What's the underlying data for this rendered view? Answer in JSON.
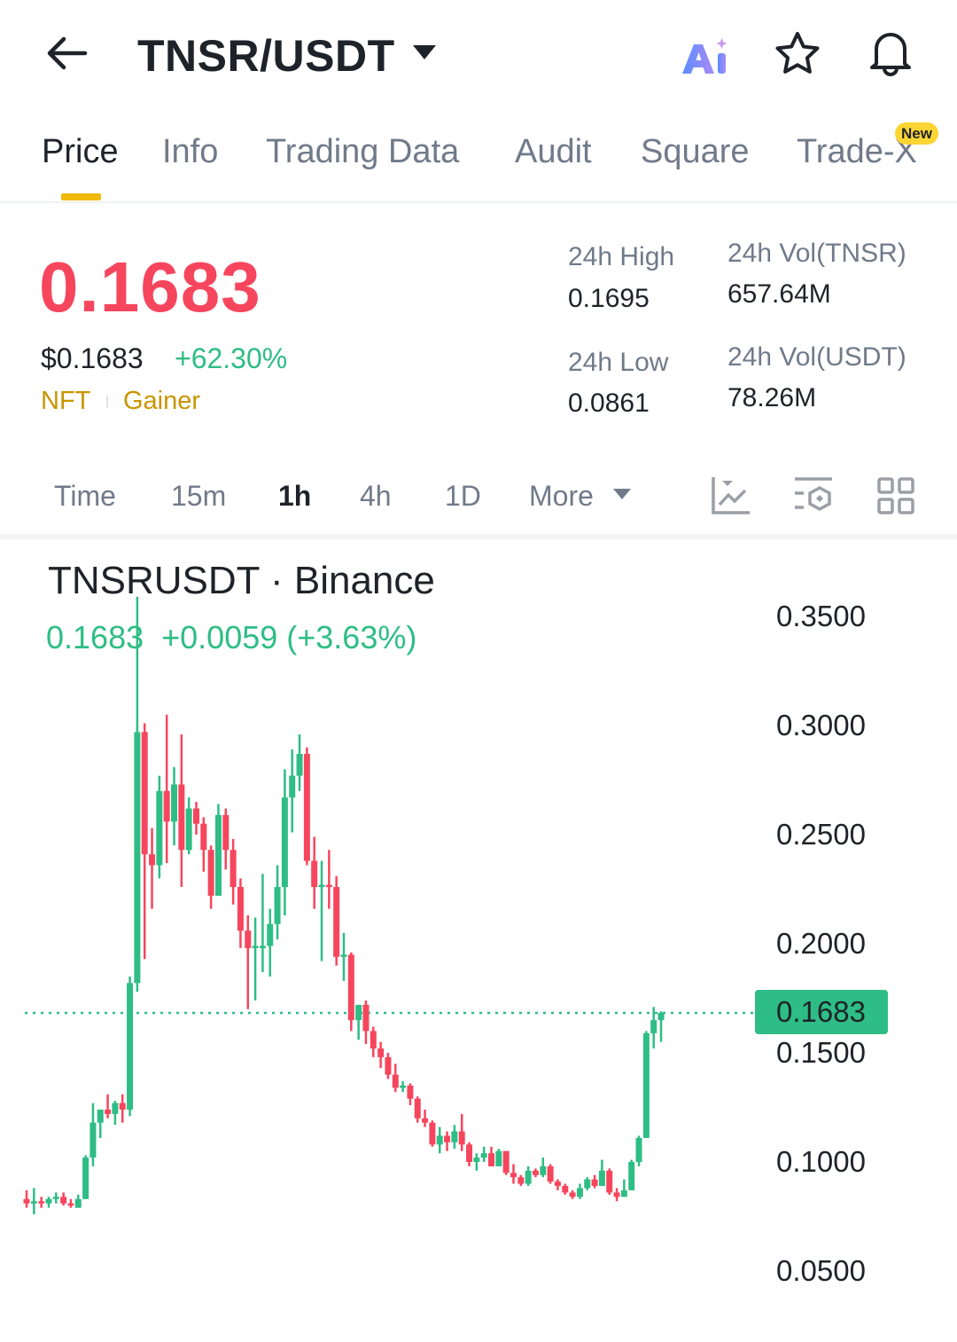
{
  "header": {
    "back_icon": "arrow-left-icon",
    "title": "TNSR/USDT",
    "dropdown_icon": "caret-down-icon",
    "icons": [
      "ai-icon",
      "star-icon",
      "bell-icon"
    ]
  },
  "tabs": [
    {
      "label": "Price",
      "active": true
    },
    {
      "label": "Info"
    },
    {
      "label": "Trading Data"
    },
    {
      "label": "Audit"
    },
    {
      "label": "Square"
    },
    {
      "label": "Trade-X",
      "badge": "New"
    }
  ],
  "summary": {
    "last_price": "0.1683",
    "usd_price": "$0.1683",
    "change_pct": "+62.30%",
    "tags": [
      "NFT",
      "Gainer"
    ],
    "stats": [
      {
        "label": "24h High",
        "value": "0.1695"
      },
      {
        "label": "24h Vol(TNSR)",
        "value": "657.64M"
      },
      {
        "label": "24h Low",
        "value": "0.0861"
      },
      {
        "label": "24h Vol(USDT)",
        "value": "78.26M"
      }
    ]
  },
  "timeframes": [
    {
      "label": "Time"
    },
    {
      "label": "15m"
    },
    {
      "label": "1h",
      "active": true
    },
    {
      "label": "4h"
    },
    {
      "label": "1D"
    },
    {
      "label": "More"
    }
  ],
  "toolbar_icons": [
    "indicator-chart-icon",
    "settings-hex-icon",
    "grid-layout-icon"
  ],
  "colors": {
    "up": "#2EBD85",
    "down": "#F6465D",
    "accent": "#F0B90B",
    "tag": "#C99400"
  },
  "chart": {
    "title": "TNSRUSDT · Binance",
    "quote_price": "0.1683",
    "quote_change": "+0.0059 (+3.63%)",
    "current_label": "0.1683"
  },
  "chart_data": {
    "type": "candlestick",
    "interval": "1h",
    "ylim": [
      0.035,
      0.36
    ],
    "y_ticks": [
      "0.3500",
      "0.3000",
      "0.2500",
      "0.2000",
      "0.1500",
      "0.1000",
      "0.0500"
    ],
    "y_tick_values": [
      0.35,
      0.3,
      0.25,
      0.2,
      0.15,
      0.1,
      0.05
    ],
    "current_price": 0.1683,
    "ohlc": [
      [
        0.083,
        0.087,
        0.079,
        0.081
      ],
      [
        0.081,
        0.088,
        0.076,
        0.082
      ],
      [
        0.082,
        0.084,
        0.079,
        0.081
      ],
      [
        0.081,
        0.084,
        0.079,
        0.083
      ],
      [
        0.083,
        0.086,
        0.081,
        0.084
      ],
      [
        0.084,
        0.086,
        0.08,
        0.081
      ],
      [
        0.081,
        0.083,
        0.079,
        0.08
      ],
      [
        0.079,
        0.085,
        0.079,
        0.083
      ],
      [
        0.083,
        0.103,
        0.083,
        0.102
      ],
      [
        0.102,
        0.127,
        0.098,
        0.118
      ],
      [
        0.118,
        0.123,
        0.111,
        0.124
      ],
      [
        0.124,
        0.131,
        0.12,
        0.122
      ],
      [
        0.122,
        0.128,
        0.117,
        0.127
      ],
      [
        0.127,
        0.131,
        0.118,
        0.124
      ],
      [
        0.124,
        0.185,
        0.121,
        0.182
      ],
      [
        0.182,
        0.359,
        0.178,
        0.297
      ],
      [
        0.297,
        0.301,
        0.193,
        0.241
      ],
      [
        0.241,
        0.253,
        0.216,
        0.236
      ],
      [
        0.236,
        0.277,
        0.23,
        0.27
      ],
      [
        0.27,
        0.305,
        0.237,
        0.256
      ],
      [
        0.256,
        0.281,
        0.245,
        0.273
      ],
      [
        0.273,
        0.296,
        0.226,
        0.243
      ],
      [
        0.243,
        0.267,
        0.241,
        0.262
      ],
      [
        0.262,
        0.265,
        0.25,
        0.255
      ],
      [
        0.255,
        0.258,
        0.233,
        0.243
      ],
      [
        0.243,
        0.245,
        0.216,
        0.222
      ],
      [
        0.222,
        0.264,
        0.222,
        0.259
      ],
      [
        0.259,
        0.262,
        0.234,
        0.243
      ],
      [
        0.243,
        0.248,
        0.218,
        0.226
      ],
      [
        0.226,
        0.23,
        0.198,
        0.206
      ],
      [
        0.206,
        0.213,
        0.17,
        0.198
      ],
      [
        0.198,
        0.212,
        0.174,
        0.199
      ],
      [
        0.199,
        0.232,
        0.187,
        0.199
      ],
      [
        0.199,
        0.216,
        0.185,
        0.209
      ],
      [
        0.209,
        0.236,
        0.202,
        0.226
      ],
      [
        0.226,
        0.28,
        0.213,
        0.267
      ],
      [
        0.267,
        0.289,
        0.251,
        0.277
      ],
      [
        0.277,
        0.296,
        0.27,
        0.287
      ],
      [
        0.287,
        0.29,
        0.236,
        0.238
      ],
      [
        0.238,
        0.249,
        0.216,
        0.226
      ],
      [
        0.226,
        0.238,
        0.192,
        0.227
      ],
      [
        0.227,
        0.243,
        0.216,
        0.226
      ],
      [
        0.226,
        0.231,
        0.19,
        0.194
      ],
      [
        0.194,
        0.205,
        0.183,
        0.195
      ],
      [
        0.195,
        0.196,
        0.16,
        0.165
      ],
      [
        0.165,
        0.172,
        0.156,
        0.172
      ],
      [
        0.172,
        0.174,
        0.154,
        0.16
      ],
      [
        0.16,
        0.162,
        0.148,
        0.152
      ],
      [
        0.152,
        0.155,
        0.143,
        0.148
      ],
      [
        0.148,
        0.15,
        0.138,
        0.14
      ],
      [
        0.14,
        0.145,
        0.132,
        0.134
      ],
      [
        0.134,
        0.137,
        0.132,
        0.135
      ],
      [
        0.135,
        0.136,
        0.126,
        0.129
      ],
      [
        0.129,
        0.13,
        0.118,
        0.12
      ],
      [
        0.12,
        0.124,
        0.116,
        0.118
      ],
      [
        0.118,
        0.119,
        0.107,
        0.108
      ],
      [
        0.108,
        0.116,
        0.104,
        0.112
      ],
      [
        0.112,
        0.114,
        0.105,
        0.109
      ],
      [
        0.109,
        0.117,
        0.106,
        0.114
      ],
      [
        0.114,
        0.122,
        0.105,
        0.108
      ],
      [
        0.108,
        0.109,
        0.098,
        0.1
      ],
      [
        0.1,
        0.104,
        0.096,
        0.102
      ],
      [
        0.102,
        0.107,
        0.1,
        0.104
      ],
      [
        0.104,
        0.107,
        0.098,
        0.098
      ],
      [
        0.098,
        0.106,
        0.098,
        0.105
      ],
      [
        0.105,
        0.105,
        0.094,
        0.095
      ],
      [
        0.095,
        0.099,
        0.09,
        0.093
      ],
      [
        0.093,
        0.094,
        0.089,
        0.09
      ],
      [
        0.09,
        0.098,
        0.089,
        0.096
      ],
      [
        0.096,
        0.097,
        0.093,
        0.094
      ],
      [
        0.094,
        0.102,
        0.093,
        0.098
      ],
      [
        0.098,
        0.099,
        0.09,
        0.091
      ],
      [
        0.091,
        0.092,
        0.087,
        0.089
      ],
      [
        0.089,
        0.09,
        0.085,
        0.086
      ],
      [
        0.086,
        0.087,
        0.083,
        0.084
      ],
      [
        0.084,
        0.09,
        0.083,
        0.088
      ],
      [
        0.088,
        0.093,
        0.087,
        0.092
      ],
      [
        0.092,
        0.094,
        0.088,
        0.089
      ],
      [
        0.089,
        0.101,
        0.089,
        0.096
      ],
      [
        0.096,
        0.097,
        0.085,
        0.086
      ],
      [
        0.086,
        0.088,
        0.082,
        0.084
      ],
      [
        0.084,
        0.092,
        0.084,
        0.087
      ],
      [
        0.087,
        0.101,
        0.087,
        0.1
      ],
      [
        0.1,
        0.112,
        0.098,
        0.111
      ],
      [
        0.111,
        0.16,
        0.111,
        0.159
      ],
      [
        0.159,
        0.171,
        0.152,
        0.165
      ],
      [
        0.165,
        0.169,
        0.155,
        0.1683
      ]
    ]
  }
}
